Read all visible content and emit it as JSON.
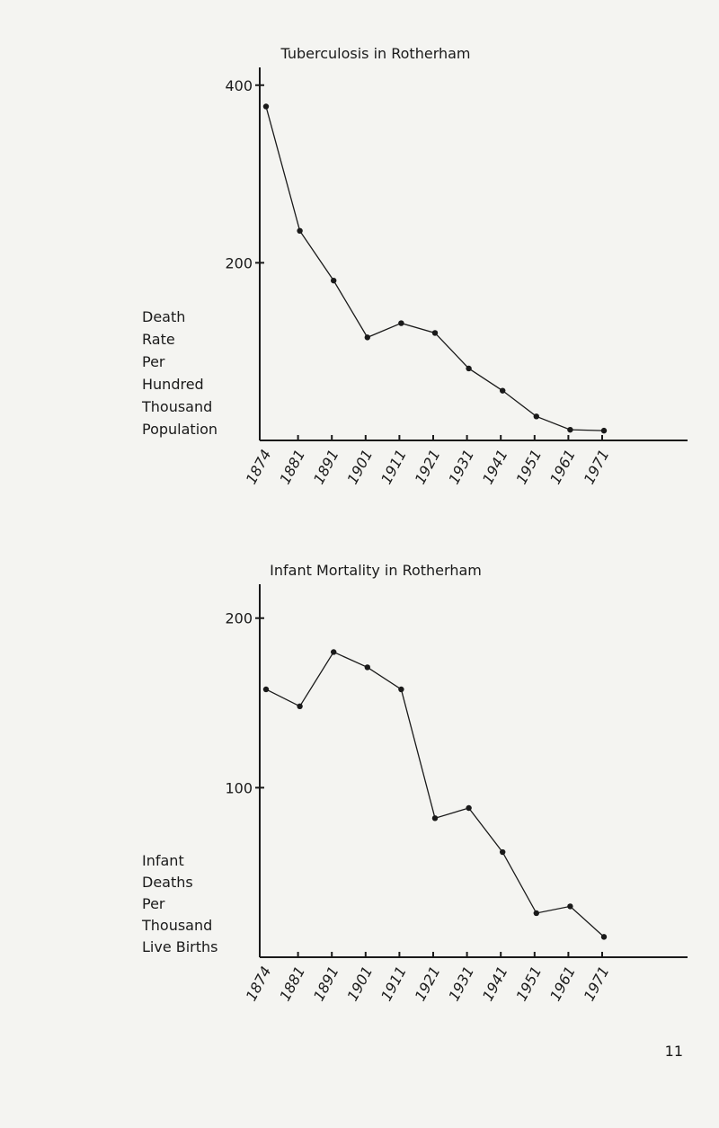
{
  "chart_data": [
    {
      "type": "line",
      "title": "Tuberculosis in Rotherham",
      "ylabel": [
        "Death",
        "Rate",
        "Per",
        "Hundred",
        "Thousand",
        "Population"
      ],
      "categories": [
        "1874",
        "1881",
        "1891",
        "1901",
        "1911",
        "1921",
        "1931",
        "1941",
        "1951",
        "1961",
        "1971"
      ],
      "values": [
        376,
        236,
        180,
        116,
        132,
        121,
        81,
        56,
        27,
        12,
        11
      ],
      "color": "#1a1a1a",
      "ylim": [
        0,
        420
      ],
      "yticks": [
        200,
        400
      ]
    },
    {
      "type": "line",
      "title": "Infant Mortality in Rotherham",
      "ylabel": [
        "Infant",
        "Deaths",
        "Per",
        "Thousand",
        "Live Births"
      ],
      "categories": [
        "1874",
        "1881",
        "1891",
        "1901",
        "1911",
        "1921",
        "1931",
        "1941",
        "1951",
        "1961",
        "1971"
      ],
      "values": [
        158,
        148,
        180,
        171,
        158,
        82,
        88,
        62,
        26,
        30,
        12
      ],
      "color": "#1a1a1a",
      "ylim": [
        0,
        220
      ],
      "yticks": [
        100,
        200
      ]
    }
  ],
  "page_number": "11"
}
